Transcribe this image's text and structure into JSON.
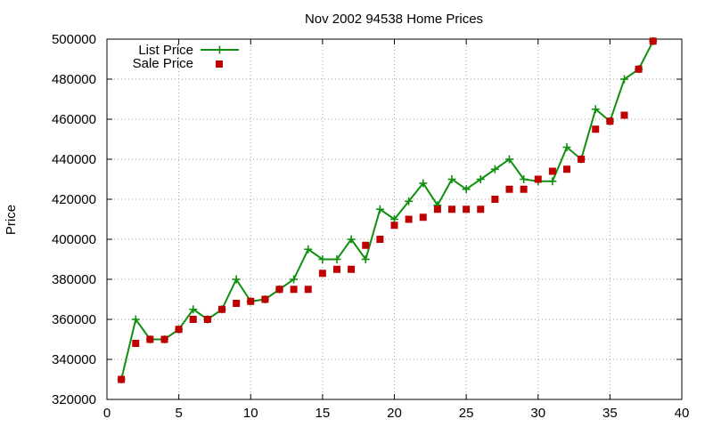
{
  "chart_data": {
    "type": "line",
    "title": "Nov 2002 94538 Home Prices",
    "xlabel": "",
    "ylabel": "Price",
    "xlim": [
      0,
      40
    ],
    "ylim": [
      320000,
      500000
    ],
    "xticks": [
      0,
      5,
      10,
      15,
      20,
      25,
      30,
      35,
      40
    ],
    "yticks": [
      320000,
      340000,
      360000,
      380000,
      400000,
      420000,
      440000,
      460000,
      480000,
      500000
    ],
    "grid": true,
    "legend_position": "top-left",
    "series": [
      {
        "name": "List Price",
        "style": "line+cross",
        "color": "#109010",
        "x": [
          1,
          2,
          3,
          4,
          5,
          6,
          7,
          8,
          9,
          10,
          11,
          12,
          13,
          14,
          15,
          16,
          17,
          18,
          19,
          20,
          21,
          22,
          23,
          24,
          25,
          26,
          27,
          28,
          29,
          30,
          31,
          32,
          33,
          34,
          35,
          36,
          37,
          38
        ],
        "y": [
          330000,
          360000,
          350000,
          350000,
          355000,
          365000,
          360000,
          365000,
          380000,
          369000,
          370000,
          375000,
          380000,
          395000,
          390000,
          390000,
          400000,
          390000,
          415000,
          410000,
          419000,
          428000,
          417000,
          430000,
          425000,
          430000,
          435000,
          440000,
          430000,
          429000,
          429000,
          446000,
          440000,
          465000,
          459000,
          480000,
          485000,
          499000
        ]
      },
      {
        "name": "Sale Price",
        "style": "square-markers",
        "color": "#c00000",
        "x": [
          1,
          2,
          3,
          4,
          5,
          6,
          7,
          8,
          9,
          10,
          11,
          12,
          13,
          14,
          15,
          16,
          17,
          18,
          19,
          20,
          21,
          22,
          23,
          24,
          25,
          26,
          27,
          28,
          29,
          30,
          31,
          32,
          33,
          34,
          35,
          36,
          37,
          38
        ],
        "y": [
          330000,
          348000,
          350000,
          350000,
          355000,
          360000,
          360000,
          365000,
          368000,
          369000,
          370000,
          375000,
          375000,
          375000,
          383000,
          385000,
          385000,
          397000,
          400000,
          407000,
          410000,
          411000,
          415000,
          415000,
          415000,
          415000,
          420000,
          425000,
          425000,
          430000,
          434000,
          435000,
          440000,
          455000,
          459000,
          462000,
          485000,
          499000
        ]
      }
    ]
  }
}
